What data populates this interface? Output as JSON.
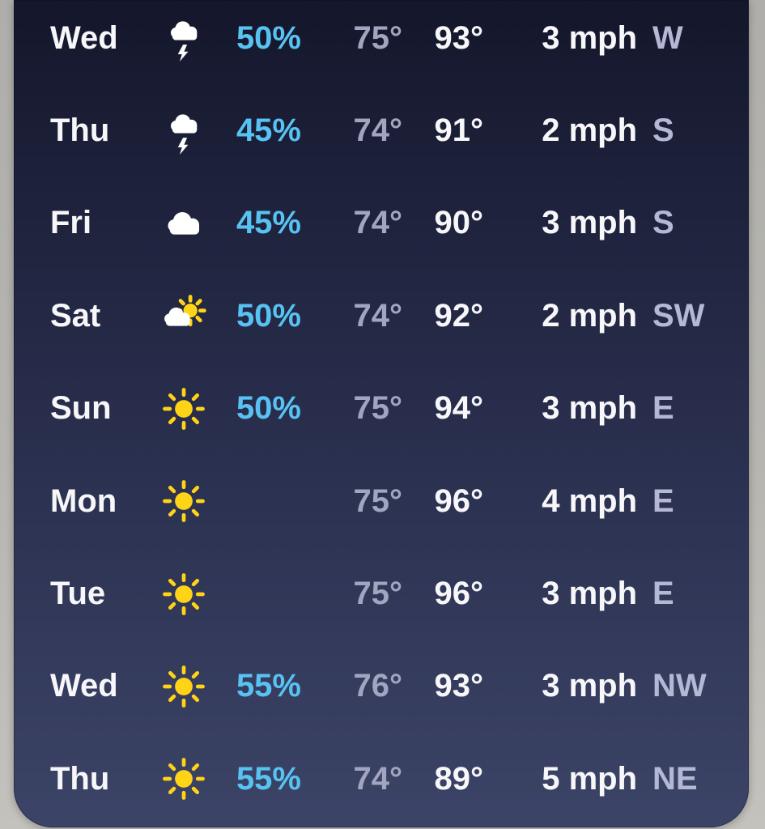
{
  "colors": {
    "card_top": "#14172b",
    "card_bottom": "#3c4467",
    "precip_blue": "#58c2f2",
    "sun_yellow": "#ffd316",
    "text_primary": "#f7f7fa",
    "text_low": "#a1a5bf",
    "text_dir": "#b4b8d5"
  },
  "forecast": {
    "rows": [
      {
        "day": "Wed",
        "icon": "storm-cloud",
        "precip": "50%",
        "low": "75°",
        "high": "93°",
        "wind": "3 mph",
        "direction": "W"
      },
      {
        "day": "Thu",
        "icon": "storm-cloud",
        "precip": "45%",
        "low": "74°",
        "high": "91°",
        "wind": "2 mph",
        "direction": "S"
      },
      {
        "day": "Fri",
        "icon": "cloud",
        "precip": "45%",
        "low": "74°",
        "high": "90°",
        "wind": "3 mph",
        "direction": "S"
      },
      {
        "day": "Sat",
        "icon": "sun-behind-cloud",
        "precip": "50%",
        "low": "74°",
        "high": "92°",
        "wind": "2 mph",
        "direction": "SW"
      },
      {
        "day": "Sun",
        "icon": "sun",
        "precip": "50%",
        "low": "75°",
        "high": "94°",
        "wind": "3 mph",
        "direction": "E"
      },
      {
        "day": "Mon",
        "icon": "sun",
        "precip": "",
        "low": "75°",
        "high": "96°",
        "wind": "4 mph",
        "direction": "E"
      },
      {
        "day": "Tue",
        "icon": "sun",
        "precip": "",
        "low": "75°",
        "high": "96°",
        "wind": "3 mph",
        "direction": "E"
      },
      {
        "day": "Wed",
        "icon": "sun",
        "precip": "55%",
        "low": "76°",
        "high": "93°",
        "wind": "3 mph",
        "direction": "NW"
      },
      {
        "day": "Thu",
        "icon": "sun",
        "precip": "55%",
        "low": "74°",
        "high": "89°",
        "wind": "5 mph",
        "direction": "NE"
      }
    ]
  }
}
